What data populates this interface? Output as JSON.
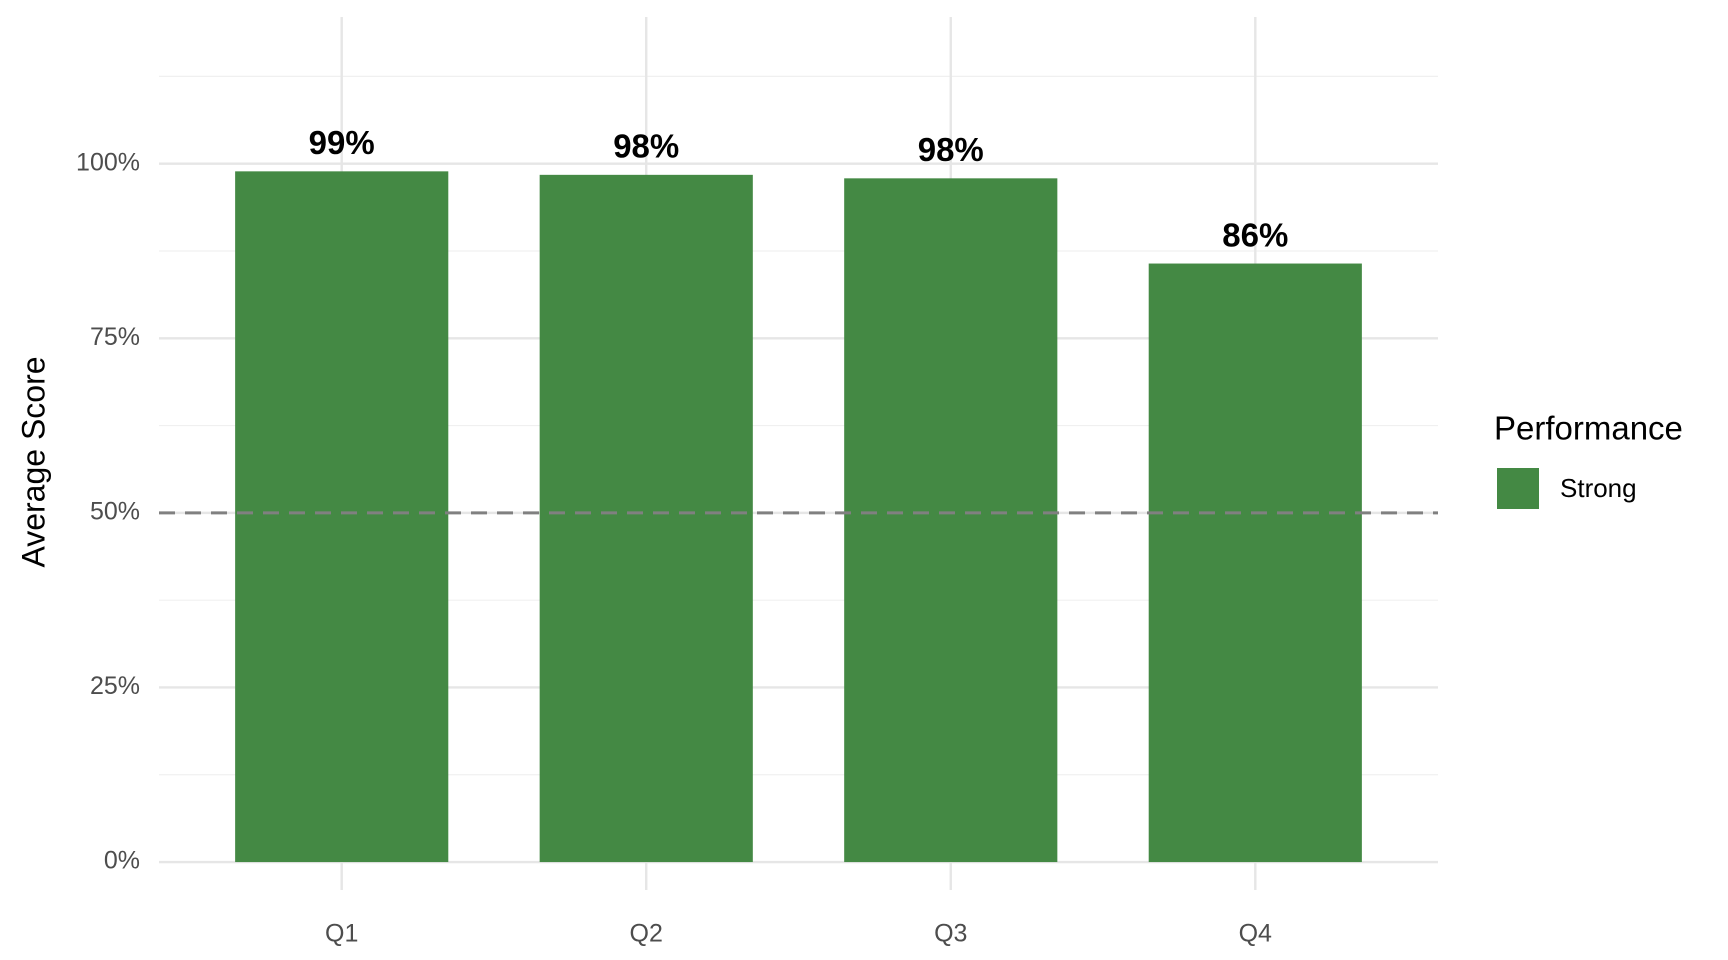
{
  "chart_data": {
    "type": "bar",
    "y_label": "Average Score",
    "legend_title": "Performance",
    "categories": [
      "Q1",
      "Q2",
      "Q3",
      "Q4"
    ],
    "series": [
      {
        "name": "Strong",
        "color": "#448944",
        "values": [
          98.9,
          98.4,
          97.9,
          85.7
        ],
        "value_labels": [
          "99%",
          "98%",
          "98%",
          "86%"
        ]
      }
    ],
    "ylim": [
      -4,
      121
    ],
    "yticks": [
      {
        "value": 0,
        "label": "0%"
      },
      {
        "value": 25,
        "label": "25%"
      },
      {
        "value": 50,
        "label": "50%"
      },
      {
        "value": 75,
        "label": "75%"
      },
      {
        "value": 100,
        "label": "100%"
      }
    ],
    "minor_yticks": [
      12.5,
      37.5,
      62.5,
      87.5,
      112.5
    ],
    "reference_line": 50,
    "grid": true,
    "legend_position": "right"
  }
}
